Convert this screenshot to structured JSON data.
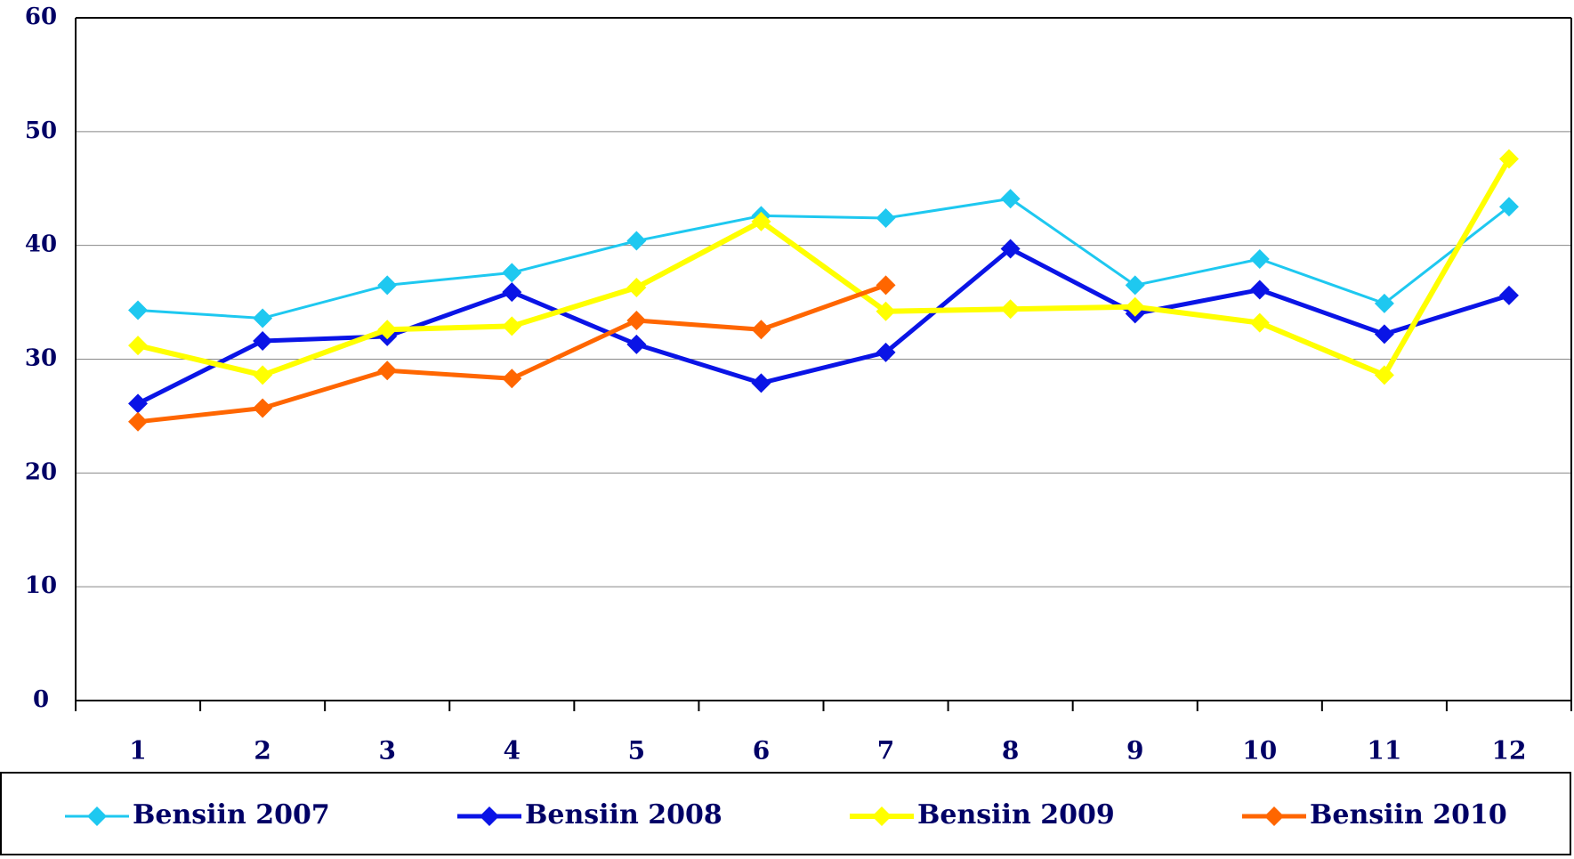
{
  "chart_data": {
    "type": "line",
    "categories": [
      "1",
      "2",
      "3",
      "4",
      "5",
      "6",
      "7",
      "8",
      "9",
      "10",
      "11",
      "12"
    ],
    "series": [
      {
        "name": "Bensiin 2007",
        "color": "#1ec8f0",
        "values": [
          34.3,
          33.6,
          36.5,
          37.6,
          40.4,
          42.6,
          42.4,
          44.1,
          36.5,
          38.8,
          34.9,
          43.4
        ]
      },
      {
        "name": "Bensiin 2008",
        "color": "#0a14e6",
        "values": [
          26.1,
          31.6,
          32.0,
          35.9,
          31.3,
          27.9,
          30.6,
          39.7,
          34.0,
          36.1,
          32.2,
          35.6
        ]
      },
      {
        "name": "Bensiin 2009",
        "color": "#ffff00",
        "values": [
          31.2,
          28.6,
          32.6,
          32.9,
          36.3,
          42.1,
          34.2,
          34.4,
          34.6,
          33.2,
          28.6,
          47.6
        ]
      },
      {
        "name": "Bensiin 2010",
        "color": "#ff6600",
        "values": [
          24.5,
          25.7,
          29.0,
          28.3,
          33.4,
          32.6,
          36.5,
          null,
          null,
          null,
          null,
          null
        ]
      }
    ],
    "ylim": [
      0,
      60
    ],
    "yticks": [
      0,
      10,
      20,
      30,
      40,
      50,
      60
    ],
    "grid": true,
    "legend": "bottom"
  }
}
